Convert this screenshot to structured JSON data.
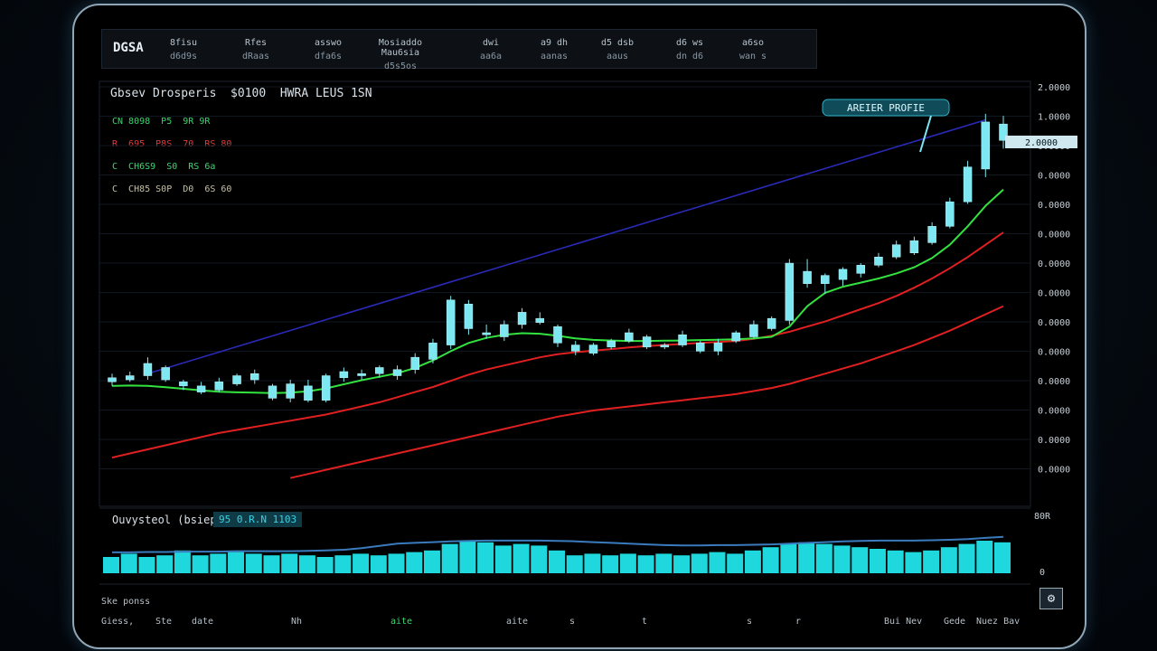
{
  "topbar": {
    "logo": "DGSA",
    "cells": [
      {
        "r1": "8fisu",
        "r2": "d6d9s"
      },
      {
        "r1": "Rfes",
        "r2": "dRaas"
      },
      {
        "r1": "asswo",
        "r2": "dfa6s"
      },
      {
        "r1": "Mosiaddo Mau6sia",
        "r2": "d5s5os"
      },
      {
        "r1": "dwi",
        "r2": "aa6a"
      },
      {
        "r1": "a9 dh",
        "r2": "aanas"
      },
      {
        "r1": "d5 dsb",
        "r2": "aaus"
      },
      {
        "r1": "d6 ws",
        "r2": "dn d6"
      },
      {
        "r1": "a6so",
        "r2": "wan s"
      }
    ]
  },
  "chart": {
    "title": "Gbsev Drosperis  $0100  HWRA LEUS 1SN",
    "legend": [
      {
        "text": "CN 8098  P5  9R 9R",
        "color": "#39d86a"
      },
      {
        "text": "R  695  P8S  70  RS 80",
        "color": "#e53a3a"
      },
      {
        "text": "C  CH6S9  S0  RS 6a",
        "color": "#3fd86d"
      },
      {
        "text": "C  CH85 S0P  D0  6S 60",
        "color": "#c7c0a0"
      }
    ],
    "callout": "AREIER PROFIE",
    "price_tag": "2.0000",
    "y_ticks": [
      "2.0000",
      "1.0000",
      "0.0000",
      "0.0000",
      "0.0000",
      "0.0000",
      "0.0000",
      "0.0000",
      "0.0000",
      "0.0000",
      "0.0000",
      "0.0000",
      "0.0000",
      "0.0000"
    ]
  },
  "indicator": {
    "title": "Ouvysteol (bsiep)",
    "badge": "95  0.R.N 1103",
    "y_top": "80R",
    "y_bottom": "0"
  },
  "sub_label": "Ske ponss",
  "x_labels": [
    {
      "text": "Giess,",
      "pos": 0
    },
    {
      "text": "Ste",
      "pos": 60
    },
    {
      "text": "date",
      "pos": 100
    },
    {
      "text": "Nh",
      "pos": 210
    },
    {
      "text": "aite",
      "pos": 320
    },
    {
      "text": "aite",
      "pos": 448
    },
    {
      "text": "s",
      "pos": 518
    },
    {
      "text": "t",
      "pos": 598
    },
    {
      "text": "s",
      "pos": 714
    },
    {
      "text": "r",
      "pos": 768
    },
    {
      "text": "Bui Nev",
      "pos": 866
    },
    {
      "text": "Gede",
      "pos": 932
    },
    {
      "text": "Nuez Bav",
      "pos": 968
    }
  ],
  "colors": {
    "candle": "#7ee8f2",
    "ma_fast": "#33e23f",
    "ma_mid": "#e02020",
    "trend": "#2a2ab8",
    "volume": "#1fd8dd",
    "indicator_line": "#3a7bbd"
  },
  "chart_data": {
    "type": "line",
    "candles": [
      [
        0,
        0.2,
        0.6,
        0.0,
        0.4
      ],
      [
        1,
        0.3,
        0.7,
        0.2,
        0.5
      ],
      [
        2,
        0.5,
        1.4,
        0.3,
        1.1
      ],
      [
        3,
        0.9,
        1.0,
        0.2,
        0.3
      ],
      [
        4,
        0.2,
        0.3,
        -0.2,
        0.0
      ],
      [
        5,
        0.0,
        0.2,
        -0.4,
        -0.3
      ],
      [
        6,
        -0.2,
        0.4,
        -0.3,
        0.2
      ],
      [
        7,
        0.1,
        0.6,
        0.0,
        0.5
      ],
      [
        8,
        0.3,
        0.8,
        0.1,
        0.6
      ],
      [
        9,
        0.0,
        0.1,
        -0.7,
        -0.6
      ],
      [
        10,
        -0.6,
        0.3,
        -0.8,
        0.1
      ],
      [
        11,
        0.0,
        0.3,
        -0.8,
        -0.7
      ],
      [
        12,
        -0.7,
        0.6,
        -0.8,
        0.5
      ],
      [
        13,
        0.4,
        0.9,
        0.2,
        0.7
      ],
      [
        14,
        0.5,
        0.8,
        0.3,
        0.6
      ],
      [
        15,
        0.6,
        1.0,
        0.4,
        0.9
      ],
      [
        16,
        0.5,
        1.0,
        0.3,
        0.8
      ],
      [
        17,
        0.8,
        1.6,
        0.6,
        1.4
      ],
      [
        18,
        1.3,
        2.3,
        1.1,
        2.1
      ],
      [
        19,
        2.0,
        4.4,
        1.8,
        4.2
      ],
      [
        20,
        4.0,
        4.2,
        2.5,
        2.8
      ],
      [
        21,
        2.6,
        3.0,
        2.3,
        2.5
      ],
      [
        22,
        2.4,
        3.2,
        2.2,
        3.0
      ],
      [
        23,
        3.0,
        3.8,
        2.8,
        3.6
      ],
      [
        24,
        3.3,
        3.6,
        3.0,
        3.1
      ],
      [
        25,
        2.9,
        3.0,
        1.9,
        2.1
      ],
      [
        26,
        2.0,
        2.2,
        1.5,
        1.7
      ],
      [
        27,
        1.6,
        2.1,
        1.5,
        2.0
      ],
      [
        28,
        1.9,
        2.3,
        1.8,
        2.2
      ],
      [
        29,
        2.2,
        2.8,
        2.1,
        2.6
      ],
      [
        30,
        2.4,
        2.5,
        1.8,
        1.9
      ],
      [
        31,
        1.9,
        2.1,
        1.8,
        2.0
      ],
      [
        32,
        2.0,
        2.7,
        1.9,
        2.5
      ],
      [
        33,
        2.1,
        2.2,
        1.6,
        1.7
      ],
      [
        34,
        1.7,
        2.3,
        1.5,
        2.1
      ],
      [
        35,
        2.2,
        2.7,
        2.1,
        2.6
      ],
      [
        36,
        2.4,
        3.2,
        2.3,
        3.0
      ],
      [
        37,
        2.8,
        3.4,
        2.7,
        3.3
      ],
      [
        38,
        3.2,
        6.2,
        3.0,
        6.0
      ],
      [
        39,
        5.6,
        6.2,
        4.8,
        5.0
      ],
      [
        40,
        5.0,
        5.5,
        4.5,
        5.4
      ],
      [
        41,
        5.2,
        5.8,
        4.9,
        5.7
      ],
      [
        42,
        5.5,
        6.0,
        5.3,
        5.9
      ],
      [
        43,
        5.9,
        6.5,
        5.8,
        6.3
      ],
      [
        44,
        6.3,
        7.1,
        6.2,
        6.9
      ],
      [
        45,
        6.5,
        7.3,
        6.4,
        7.1
      ],
      [
        46,
        7.0,
        8.0,
        6.9,
        7.8
      ],
      [
        47,
        7.8,
        9.2,
        7.7,
        9.0
      ],
      [
        48,
        9.0,
        11.0,
        8.9,
        10.7
      ],
      [
        49,
        10.6,
        13.3,
        10.2,
        12.9
      ],
      [
        50,
        12.8,
        13.2,
        11.6,
        12.0
      ]
    ],
    "ma_fast": [
      0.0,
      0.02,
      0.0,
      -0.06,
      -0.14,
      -0.22,
      -0.28,
      -0.31,
      -0.33,
      -0.35,
      -0.33,
      -0.26,
      -0.12,
      0.08,
      0.28,
      0.45,
      0.62,
      0.88,
      1.25,
      1.7,
      2.1,
      2.35,
      2.5,
      2.58,
      2.55,
      2.45,
      2.32,
      2.25,
      2.22,
      2.2,
      2.2,
      2.21,
      2.22,
      2.24,
      2.26,
      2.28,
      2.32,
      2.4,
      2.9,
      3.9,
      4.55,
      4.85,
      5.05,
      5.25,
      5.5,
      5.8,
      6.25,
      6.9,
      7.8,
      8.8,
      9.6
    ],
    "ma_slow": [
      -3.5,
      -3.3,
      -3.1,
      -2.9,
      -2.7,
      -2.5,
      -2.3,
      -2.15,
      -2.0,
      -1.85,
      -1.7,
      -1.55,
      -1.4,
      -1.2,
      -1.0,
      -0.8,
      -0.55,
      -0.3,
      -0.05,
      0.25,
      0.55,
      0.8,
      1.0,
      1.2,
      1.4,
      1.55,
      1.65,
      1.72,
      1.8,
      1.88,
      1.95,
      2.0,
      2.05,
      2.1,
      2.15,
      2.2,
      2.3,
      2.45,
      2.65,
      2.9,
      3.15,
      3.45,
      3.75,
      4.05,
      4.4,
      4.8,
      5.25,
      5.75,
      6.3,
      6.9,
      7.5
    ],
    "ma_slow2": [
      null,
      null,
      null,
      null,
      null,
      null,
      null,
      null,
      null,
      null,
      -4.5,
      -4.3,
      -4.1,
      -3.9,
      -3.7,
      -3.5,
      -3.3,
      -3.1,
      -2.9,
      -2.7,
      -2.5,
      -2.3,
      -2.1,
      -1.9,
      -1.7,
      -1.5,
      -1.35,
      -1.2,
      -1.1,
      -1.0,
      -0.9,
      -0.8,
      -0.7,
      -0.6,
      -0.5,
      -0.4,
      -0.25,
      -0.1,
      0.1,
      0.35,
      0.6,
      0.85,
      1.1,
      1.4,
      1.7,
      2.0,
      2.35,
      2.7,
      3.1,
      3.5,
      3.9
    ],
    "trend": [
      0.6,
      13.0
    ],
    "volume": [
      0.5,
      0.6,
      0.5,
      0.55,
      0.7,
      0.55,
      0.6,
      0.65,
      0.6,
      0.55,
      0.6,
      0.55,
      0.5,
      0.55,
      0.6,
      0.55,
      0.6,
      0.65,
      0.7,
      0.9,
      1.0,
      0.95,
      0.85,
      0.9,
      0.85,
      0.7,
      0.55,
      0.6,
      0.55,
      0.6,
      0.55,
      0.6,
      0.55,
      0.6,
      0.65,
      0.6,
      0.7,
      0.8,
      0.9,
      0.95,
      0.9,
      0.85,
      0.8,
      0.75,
      0.7,
      0.65,
      0.7,
      0.8,
      0.9,
      1.0,
      0.95
    ],
    "indicator": [
      0.55,
      0.55,
      0.56,
      0.56,
      0.57,
      0.57,
      0.57,
      0.58,
      0.58,
      0.58,
      0.58,
      0.59,
      0.6,
      0.62,
      0.66,
      0.72,
      0.78,
      0.8,
      0.82,
      0.84,
      0.85,
      0.86,
      0.86,
      0.86,
      0.86,
      0.85,
      0.84,
      0.82,
      0.8,
      0.78,
      0.76,
      0.74,
      0.73,
      0.73,
      0.74,
      0.74,
      0.75,
      0.76,
      0.78,
      0.8,
      0.82,
      0.84,
      0.85,
      0.86,
      0.86,
      0.86,
      0.87,
      0.88,
      0.9,
      0.93,
      0.96
    ],
    "ylim": [
      -5,
      14
    ]
  }
}
